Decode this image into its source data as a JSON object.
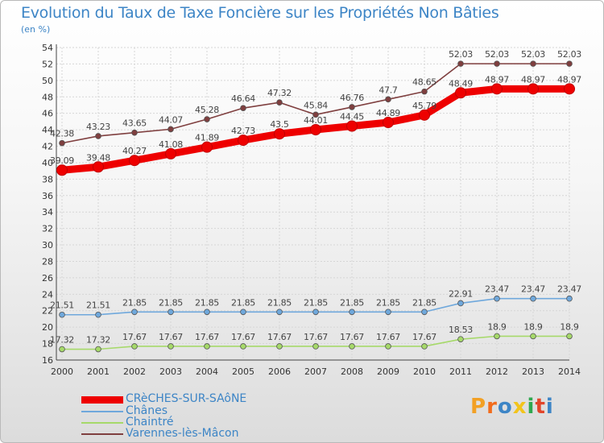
{
  "title": "Evolution du Taux de Taxe Foncière sur les Propriétés Non Bâties",
  "unit": "(en %)",
  "brand": {
    "name": "Proxiti",
    "letters": [
      "P",
      "r",
      "o",
      "x",
      "i",
      "t",
      "i"
    ],
    "colors": [
      "#f2a024",
      "#f26c1c",
      "#3d85c6",
      "#f2c41c",
      "#2fa84f",
      "#e2452a",
      "#3d85c6"
    ]
  },
  "chart_data": {
    "type": "line",
    "title": "Evolution du Taux de Taxe Foncière sur les Propriétés Non Bâties",
    "ylabel": "(en %)",
    "xlabel": "",
    "ylim": [
      16,
      54
    ],
    "ytick_step": 2,
    "grid": true,
    "legend_position": "bottom-left",
    "x": [
      "2000",
      "2001",
      "2002",
      "2003",
      "2004",
      "2005",
      "2006",
      "2007",
      "2008",
      "2009",
      "2010",
      "2011",
      "2012",
      "2013",
      "2014"
    ],
    "series": [
      {
        "name": "CRèCHES-SUR-SAôNE",
        "color": "#ee0000",
        "thick": true,
        "values": [
          39.09,
          39.48,
          40.27,
          41.08,
          41.89,
          42.73,
          43.5,
          44.01,
          44.45,
          44.89,
          45.79,
          48.49,
          48.97,
          48.97,
          48.97
        ],
        "labels": [
          "39.09",
          "39.48",
          "40.27",
          "41.08",
          "41.89",
          "42.73",
          "43.5",
          "44.01",
          "44.45",
          "44.89",
          "45.79",
          "48.49",
          "48.97",
          "48.97",
          "48.97"
        ]
      },
      {
        "name": "Chânes",
        "color": "#6fa8dc",
        "thick": false,
        "values": [
          21.51,
          21.51,
          21.85,
          21.85,
          21.85,
          21.85,
          21.85,
          21.85,
          21.85,
          21.85,
          21.85,
          22.91,
          23.47,
          23.47,
          23.47
        ],
        "labels": [
          "21.51",
          "21.51",
          "21.85",
          "21.85",
          "21.85",
          "21.85",
          "21.85",
          "21.85",
          "21.85",
          "21.85",
          "21.85",
          "22.91",
          "23.47",
          "23.47",
          "23.47"
        ]
      },
      {
        "name": "Chaintré",
        "color": "#a6d96a",
        "thick": false,
        "values": [
          17.32,
          17.32,
          17.67,
          17.67,
          17.67,
          17.67,
          17.67,
          17.67,
          17.67,
          17.67,
          17.67,
          18.53,
          18.9,
          18.9,
          18.9
        ],
        "labels": [
          "17.32",
          "17.32",
          "17.67",
          "17.67",
          "17.67",
          "17.67",
          "17.67",
          "17.67",
          "17.67",
          "17.67",
          "17.67",
          "18.53",
          "18.9",
          "18.9",
          "18.9"
        ]
      },
      {
        "name": "Varennes-lès-Mâcon",
        "color": "#7f3f3f",
        "thick": false,
        "values": [
          42.38,
          43.23,
          43.65,
          44.07,
          45.28,
          46.64,
          47.32,
          45.84,
          46.76,
          47.7,
          48.65,
          52.03,
          52.03,
          52.03,
          52.03
        ],
        "labels": [
          "42.38",
          "43.23",
          "43.65",
          "44.07",
          "45.28",
          "46.64",
          "47.32",
          "45.84",
          "46.76",
          "47.7",
          "48.65",
          "52.03",
          "52.03",
          "52.03",
          "52.03"
        ]
      }
    ]
  }
}
